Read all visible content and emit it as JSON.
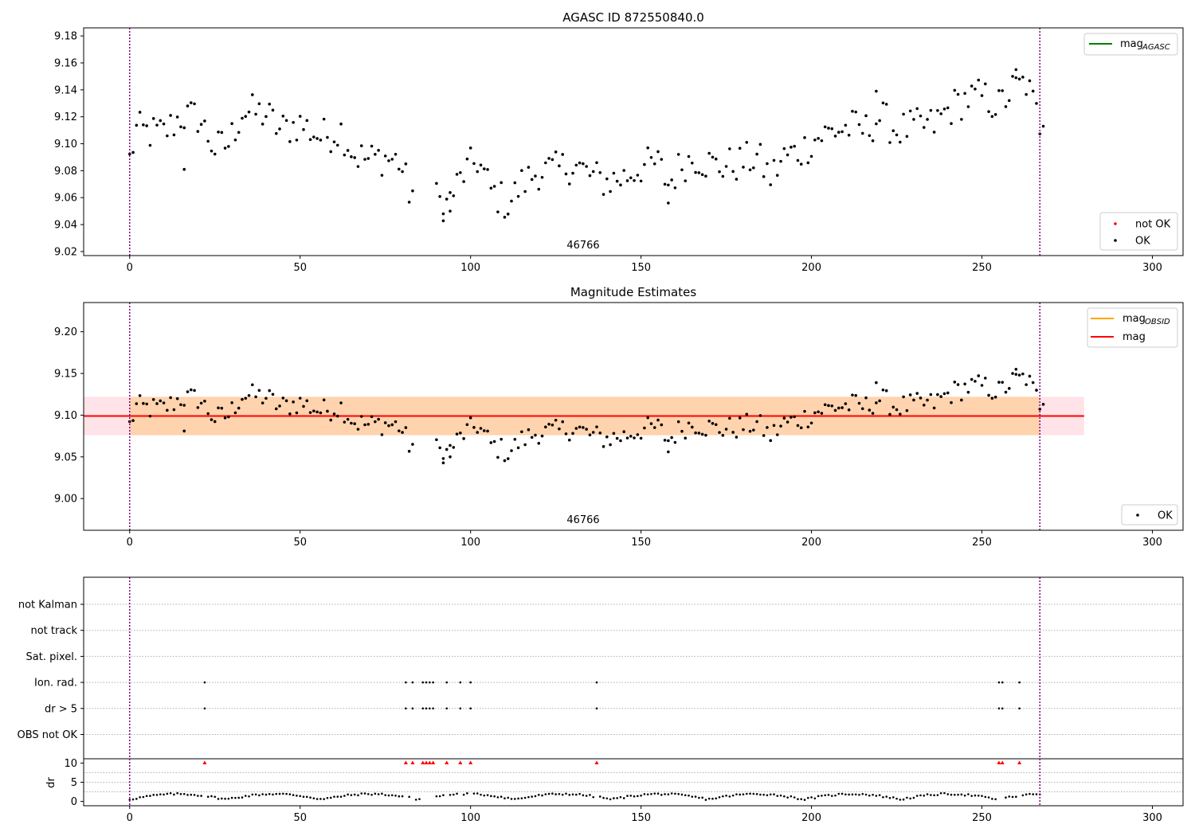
{
  "chart_data": [
    {
      "type": "scatter",
      "title": "AGASC ID 872550840.0",
      "obsid_label": "46766",
      "xlim": [
        -13.5,
        309
      ],
      "ylim": [
        9.017,
        9.186
      ],
      "xticks": [
        0,
        50,
        100,
        150,
        200,
        250,
        300
      ],
      "yticks": [
        9.02,
        9.04,
        9.06,
        9.08,
        9.1,
        9.12,
        9.14,
        9.16,
        9.18
      ],
      "vlines": [
        0,
        267
      ],
      "legend_lines": [
        {
          "label": "mag",
          "sub": "AGASC",
          "color": "#008000"
        }
      ],
      "legend_markers": [
        {
          "label": "not OK",
          "color": "#ff0000"
        },
        {
          "label": "OK",
          "color": "#000000"
        }
      ]
    },
    {
      "type": "scatter",
      "title": "Magnitude Estimates",
      "obsid_label": "46766",
      "xlim": [
        -13.5,
        309
      ],
      "ylim": [
        8.962,
        9.235
      ],
      "xticks": [
        0,
        50,
        100,
        150,
        200,
        250,
        300
      ],
      "yticks": [
        9.0,
        9.05,
        9.1,
        9.15,
        9.2
      ],
      "vlines": [
        0,
        267
      ],
      "mag_line": 9.099,
      "band_outer": [
        9.076,
        9.122,
        -13.5,
        280
      ],
      "band_inner": [
        9.076,
        9.122,
        0,
        267
      ],
      "legend_lines": [
        {
          "label": "mag",
          "sub": "OBSID",
          "color": "#ffa500"
        },
        {
          "label": "mag",
          "sub": "",
          "color": "#ff0000"
        }
      ],
      "legend_markers": [
        {
          "label": "OK",
          "color": "#000000"
        }
      ]
    },
    {
      "type": "scatter",
      "xlim": [
        -13.5,
        309
      ],
      "xticks": [
        0,
        50,
        100,
        150,
        200,
        250,
        300
      ],
      "vlines": [
        0,
        267
      ],
      "flag_rows": [
        "not Kalman",
        "not track",
        "Sat. pixel.",
        "Ion. rad.",
        "dr > 5",
        "OBS not OK"
      ],
      "flags": {
        "Ion. rad.": [
          22,
          81,
          83,
          86,
          87,
          88,
          89,
          93,
          97,
          100,
          137,
          255,
          256,
          261
        ],
        "dr > 5": [
          22,
          81,
          83,
          86,
          87,
          88,
          89,
          93,
          97,
          100,
          137,
          255,
          256,
          261
        ]
      },
      "dr_ylabel": "dr",
      "dr_yticks": [
        0,
        5,
        10
      ],
      "dr_ylim": [
        -0.5,
        10.5
      ],
      "dr_capped": [
        22,
        81,
        83,
        86,
        87,
        88,
        89,
        93,
        97,
        100,
        137,
        255,
        256,
        261
      ]
    }
  ]
}
